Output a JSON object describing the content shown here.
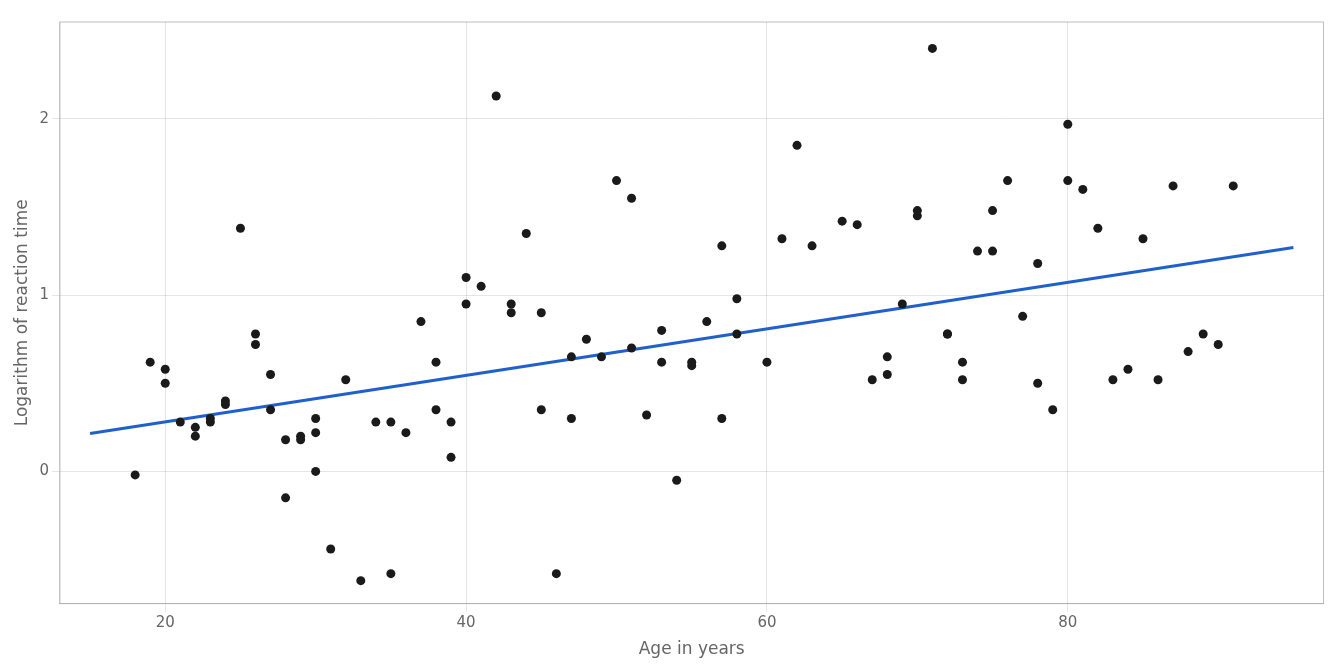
{
  "chart_data": {
    "type": "scatter",
    "xlabel": "Age in years",
    "ylabel": "Logarithm of reaction time",
    "xlim": [
      13,
      97
    ],
    "ylim": [
      -0.75,
      2.55
    ],
    "xticks": [
      20,
      40,
      60,
      80
    ],
    "yticks": [
      0,
      1,
      2
    ],
    "grid": true,
    "series": [
      {
        "type": "scatter",
        "color": "#1a1a1a",
        "x": [
          18,
          19,
          20,
          20,
          21,
          22,
          22,
          23,
          23,
          24,
          24,
          25,
          26,
          26,
          27,
          27,
          28,
          28,
          29,
          29,
          30,
          30,
          30,
          31,
          32,
          33,
          34,
          35,
          35,
          36,
          37,
          38,
          38,
          39,
          39,
          40,
          40,
          41,
          42,
          43,
          43,
          44,
          45,
          45,
          46,
          47,
          47,
          48,
          49,
          50,
          51,
          51,
          52,
          53,
          53,
          54,
          55,
          55,
          56,
          57,
          57,
          58,
          58,
          60,
          61,
          62,
          63,
          65,
          66,
          67,
          68,
          68,
          69,
          70,
          70,
          71,
          72,
          72,
          73,
          73,
          74,
          75,
          75,
          76,
          77,
          78,
          78,
          79,
          80,
          80,
          81,
          82,
          83,
          84,
          85,
          86,
          87,
          88,
          89,
          90,
          91
        ],
        "values": [
          -0.02,
          0.62,
          0.58,
          0.5,
          0.28,
          0.25,
          0.2,
          0.28,
          0.3,
          0.38,
          0.4,
          1.38,
          0.78,
          0.72,
          0.55,
          0.35,
          -0.15,
          0.18,
          0.2,
          0.18,
          -0.0,
          0.3,
          0.22,
          -0.44,
          0.52,
          -0.62,
          0.28,
          -0.58,
          0.28,
          0.22,
          0.85,
          0.62,
          0.35,
          0.28,
          0.08,
          0.95,
          1.1,
          1.05,
          2.13,
          0.9,
          0.95,
          1.35,
          0.35,
          0.9,
          -0.58,
          0.65,
          0.3,
          0.75,
          0.65,
          1.65,
          0.7,
          1.55,
          0.32,
          0.8,
          0.62,
          -0.05,
          0.62,
          0.6,
          0.85,
          1.28,
          0.3,
          0.98,
          0.78,
          0.62,
          1.32,
          1.85,
          1.28,
          1.42,
          1.4,
          0.52,
          0.55,
          0.65,
          0.95,
          1.48,
          1.45,
          2.4,
          0.78,
          0.78,
          0.52,
          0.62,
          1.25,
          1.25,
          1.48,
          1.65,
          0.88,
          1.18,
          0.5,
          0.35,
          1.97,
          1.65,
          1.6,
          1.38,
          0.52,
          0.58,
          1.32,
          0.52,
          1.62,
          0.68,
          0.78,
          0.72,
          1.62
        ]
      },
      {
        "type": "line",
        "color": "#2060cc",
        "x": [
          15,
          95
        ],
        "values": [
          0.215,
          1.27
        ]
      }
    ]
  }
}
